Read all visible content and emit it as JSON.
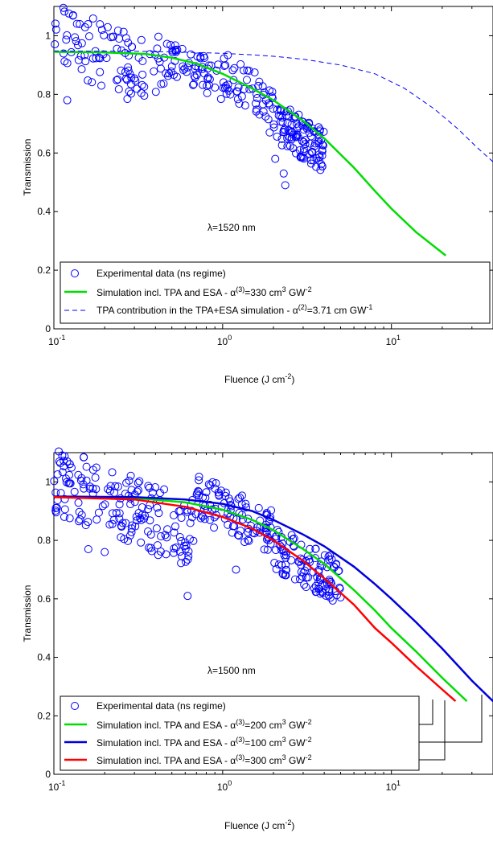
{
  "chart_data": [
    {
      "id": "top",
      "type": "scatter",
      "xscale": "log",
      "xlim": [
        0.1,
        40
      ],
      "ylim": [
        0,
        1.1
      ],
      "xlabel": "Fluence (J cm-2)",
      "ylabel": "Transmission",
      "xticks": [
        {
          "v": 0.1,
          "label": "10",
          "exp": "-1"
        },
        {
          "v": 1,
          "label": "10",
          "exp": "0"
        },
        {
          "v": 10,
          "label": "10",
          "exp": "1"
        }
      ],
      "yticks": [
        0,
        0.2,
        0.4,
        0.6,
        0.8,
        1
      ],
      "annotation": "λ=1520 nm",
      "annotation_at": [
        1.0,
        0.42
      ],
      "legend_position": "bottom",
      "series": [
        {
          "kind": "scatter",
          "color": "#0000ff",
          "legend": "Experimental data (ns regime)",
          "clusters": [
            {
              "xmin": 0.1,
              "xmax": 0.45,
              "ymin": 0.8,
              "ymax": 1.05,
              "n": 90
            },
            {
              "xmin": 0.4,
              "xmax": 1.0,
              "ymin": 0.82,
              "ymax": 0.96,
              "n": 60
            },
            {
              "xmin": 1.0,
              "xmax": 2.0,
              "ymin": 0.74,
              "ymax": 0.9,
              "n": 55
            },
            {
              "xmin": 2.0,
              "xmax": 4.0,
              "ymin": 0.58,
              "ymax": 0.74,
              "n": 110
            }
          ],
          "outliers": [
            {
              "x": 1.9,
              "y": 0.67
            },
            {
              "x": 2.05,
              "y": 0.58
            },
            {
              "x": 2.3,
              "y": 0.53
            },
            {
              "x": 2.35,
              "y": 0.49
            },
            {
              "x": 0.13,
              "y": 1.07
            },
            {
              "x": 0.12,
              "y": 0.78
            }
          ]
        },
        {
          "kind": "line",
          "color": "#00dd00",
          "width": 2.5,
          "dash": "",
          "legend": "Simulation incl. TPA and ESA - α(3)=330 cm3 GW-2",
          "x": [
            0.1,
            0.2,
            0.35,
            0.5,
            0.7,
            1.0,
            1.5,
            2.0,
            3.0,
            4.0,
            6.0,
            8.0,
            10.0,
            14.0,
            21.0
          ],
          "y": [
            0.945,
            0.943,
            0.938,
            0.925,
            0.905,
            0.87,
            0.82,
            0.78,
            0.71,
            0.65,
            0.55,
            0.47,
            0.41,
            0.33,
            0.25
          ]
        },
        {
          "kind": "line",
          "color": "#0000ff",
          "width": 1,
          "dash": "6,4",
          "legend": "TPA contribution in the TPA+ESA simulation - α(2)=3.71 cm GW-1",
          "x": [
            0.1,
            0.3,
            0.5,
            1.0,
            1.5,
            2.0,
            3.0,
            5.0,
            8.0,
            12.0,
            18.0,
            25.0,
            32.0,
            40.0
          ],
          "y": [
            0.948,
            0.947,
            0.945,
            0.94,
            0.935,
            0.93,
            0.92,
            0.9,
            0.87,
            0.82,
            0.75,
            0.68,
            0.62,
            0.57
          ]
        }
      ]
    },
    {
      "id": "bottom",
      "type": "scatter",
      "xscale": "log",
      "xlim": [
        0.1,
        40
      ],
      "ylim": [
        0,
        1.1
      ],
      "xlabel": "Fluence (J cm-2)",
      "ylabel": "Transmission",
      "xticks": [
        {
          "v": 0.1,
          "label": "10",
          "exp": "-1"
        },
        {
          "v": 1,
          "label": "10",
          "exp": "0"
        },
        {
          "v": 10,
          "label": "10",
          "exp": "1"
        }
      ],
      "yticks": [
        0,
        0.2,
        0.4,
        0.6,
        0.8,
        1
      ],
      "annotation": "λ=1500 nm",
      "annotation_at": [
        1.0,
        0.42
      ],
      "legend_position": "bottom",
      "series": [
        {
          "kind": "scatter",
          "color": "#0000ff",
          "legend": "Experimental data (ns regime)",
          "clusters": [
            {
              "xmin": 0.1,
              "xmax": 0.7,
              "ymin": 0.78,
              "ymax": 1.05,
              "n": 170
            },
            {
              "xmin": 0.7,
              "xmax": 2.0,
              "ymin": 0.8,
              "ymax": 0.98,
              "n": 100
            },
            {
              "xmin": 2.0,
              "xmax": 5.0,
              "ymin": 0.63,
              "ymax": 0.8,
              "n": 110
            }
          ],
          "outliers": [
            {
              "x": 0.62,
              "y": 0.61
            },
            {
              "x": 1.2,
              "y": 0.7
            },
            {
              "x": 0.12,
              "y": 1.07
            },
            {
              "x": 0.16,
              "y": 0.77
            },
            {
              "x": 0.2,
              "y": 0.76
            }
          ]
        },
        {
          "kind": "line",
          "color": "#00dd00",
          "width": 2.5,
          "dash": "",
          "legend": "Simulation incl. TPA and ESA - α(3)=200 cm3 GW-2",
          "x": [
            0.1,
            0.3,
            0.6,
            1.0,
            1.5,
            2.0,
            3.0,
            4.0,
            6.0,
            8.0,
            10.0,
            14.0,
            20.0,
            28.0
          ],
          "y": [
            0.948,
            0.945,
            0.93,
            0.905,
            0.87,
            0.835,
            0.77,
            0.72,
            0.63,
            0.56,
            0.5,
            0.42,
            0.33,
            0.25
          ]
        },
        {
          "kind": "line",
          "color": "#0000dd",
          "width": 2.5,
          "dash": "",
          "legend": "Simulation incl. TPA and ESA - α(3)=100 cm3 GW-2",
          "x": [
            0.1,
            0.3,
            0.6,
            1.0,
            1.5,
            2.0,
            3.0,
            4.0,
            6.0,
            8.0,
            10.0,
            14.0,
            20.0,
            30.0,
            40.0
          ],
          "y": [
            0.95,
            0.948,
            0.94,
            0.925,
            0.9,
            0.87,
            0.82,
            0.78,
            0.71,
            0.65,
            0.6,
            0.52,
            0.43,
            0.32,
            0.25
          ]
        },
        {
          "kind": "line",
          "color": "#ff0000",
          "width": 2.5,
          "dash": "",
          "legend": "Simulation incl. TPA and ESA - α(3)=300 cm3 GW-2",
          "x": [
            0.1,
            0.3,
            0.6,
            1.0,
            1.5,
            2.0,
            3.0,
            4.0,
            6.0,
            8.0,
            10.0,
            14.0,
            20.0,
            24.0
          ],
          "y": [
            0.948,
            0.94,
            0.915,
            0.88,
            0.84,
            0.8,
            0.73,
            0.67,
            0.58,
            0.5,
            0.45,
            0.37,
            0.29,
            0.25
          ]
        }
      ]
    }
  ]
}
